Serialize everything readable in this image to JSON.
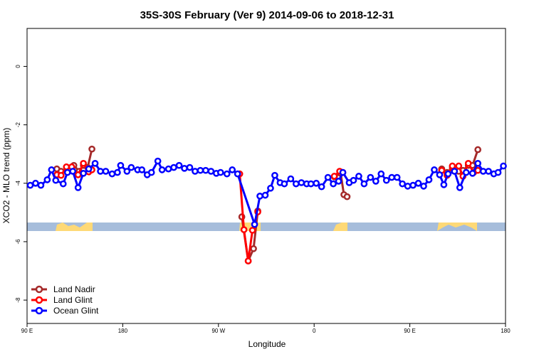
{
  "chart_data": {
    "type": "line",
    "title": "35S-30S February (Ver 9)   2014-09-06 to 2018-12-31",
    "x_label": "Longitude",
    "y_label": "XCO2 - MLO trend (ppm)",
    "xlim": [
      90,
      540
    ],
    "ylim": [
      -8.8,
      1.3
    ],
    "xticks": [
      {
        "value": 90,
        "label": "90 E"
      },
      {
        "value": 180,
        "label": "180"
      },
      {
        "value": 270,
        "label": "90 W"
      },
      {
        "value": 360,
        "label": "0"
      },
      {
        "value": 450,
        "label": "90 E"
      },
      {
        "value": 540,
        "label": "180"
      }
    ],
    "yticks": [
      0,
      -2,
      -4,
      -6,
      -8
    ],
    "legend": "bottom-left",
    "series": [
      {
        "name": "Land Nadir",
        "color": "#a52a2a",
        "x": [
          118,
          122,
          129,
          134,
          139,
          143,
          147,
          151,
          null,
          292,
          298,
          303,
          307,
          null,
          379,
          385,
          388,
          391,
          null,
          480,
          485,
          490,
          496,
          500,
          505,
          509,
          514
        ],
        "values": [
          -3.51,
          -3.59,
          -3.51,
          -3.39,
          -3.59,
          -3.39,
          -3.46,
          -2.83,
          null,
          -5.15,
          -6.66,
          -6.24,
          -4.95,
          null,
          -3.78,
          -3.66,
          -4.39,
          -4.46,
          null,
          -3.51,
          -3.63,
          -3.49,
          -3.59,
          -3.56,
          -3.39,
          -3.39,
          -2.85
        ]
      },
      {
        "name": "Land Glint",
        "color": "#ff0000",
        "x": [
          118,
          122,
          127,
          132,
          138,
          143,
          148,
          151,
          null,
          290,
          294,
          298,
          302,
          307,
          null,
          379,
          384,
          387,
          null,
          480,
          485,
          490,
          496,
          500,
          505,
          510,
          514
        ],
        "values": [
          -3.71,
          -3.73,
          -3.44,
          -3.44,
          -3.71,
          -3.32,
          -3.61,
          -3.54,
          null,
          -3.68,
          -5.59,
          -6.66,
          -5.61,
          -4.98,
          null,
          -3.76,
          -3.59,
          -3.63,
          null,
          -3.56,
          -3.73,
          -3.41,
          -3.41,
          -3.76,
          -3.32,
          -3.63,
          -3.56
        ]
      },
      {
        "name": "Ocean Glint",
        "color": "#0000ff",
        "x": [
          93,
          98,
          103,
          109,
          113,
          117,
          124,
          128,
          133,
          138,
          143,
          148,
          154,
          159,
          164,
          170,
          175,
          178,
          184,
          188,
          194,
          198,
          203,
          207,
          213,
          217,
          223,
          228,
          233,
          238,
          243,
          248,
          253,
          258,
          263,
          268,
          272,
          278,
          283,
          288,
          304,
          309,
          314,
          319,
          323,
          328,
          332,
          338,
          343,
          348,
          353,
          357,
          362,
          367,
          373,
          378,
          383,
          387,
          393,
          397,
          402,
          407,
          413,
          418,
          423,
          428,
          433,
          438,
          443,
          448,
          453,
          458,
          463,
          468,
          473,
          478,
          482,
          486,
          492,
          497,
          503,
          509,
          514,
          519,
          524,
          529,
          533,
          538
        ],
        "values": [
          -4.07,
          -4.0,
          -4.07,
          -3.88,
          -3.54,
          -3.9,
          -4.02,
          -3.63,
          -3.59,
          -4.15,
          -3.66,
          -3.51,
          -3.32,
          -3.59,
          -3.59,
          -3.68,
          -3.63,
          -3.39,
          -3.59,
          -3.46,
          -3.54,
          -3.54,
          -3.71,
          -3.63,
          -3.24,
          -3.54,
          -3.51,
          -3.46,
          -3.39,
          -3.49,
          -3.46,
          -3.59,
          -3.56,
          -3.56,
          -3.59,
          -3.66,
          -3.63,
          -3.68,
          -3.54,
          -3.68,
          -5.41,
          -4.44,
          -4.41,
          -4.17,
          -3.73,
          -3.98,
          -4.02,
          -3.85,
          -4.02,
          -3.98,
          -4.02,
          -4.02,
          -4.0,
          -4.12,
          -3.8,
          -4.02,
          -3.93,
          -3.63,
          -3.98,
          -3.9,
          -3.76,
          -4.02,
          -3.8,
          -3.93,
          -3.68,
          -3.9,
          -3.8,
          -3.8,
          -4.02,
          -4.1,
          -4.07,
          -4.0,
          -4.1,
          -3.88,
          -3.54,
          -3.71,
          -4.05,
          -3.68,
          -3.59,
          -4.15,
          -3.63,
          -3.66,
          -3.32,
          -3.59,
          -3.59,
          -3.68,
          -3.63,
          -3.41
        ]
      }
    ]
  }
}
